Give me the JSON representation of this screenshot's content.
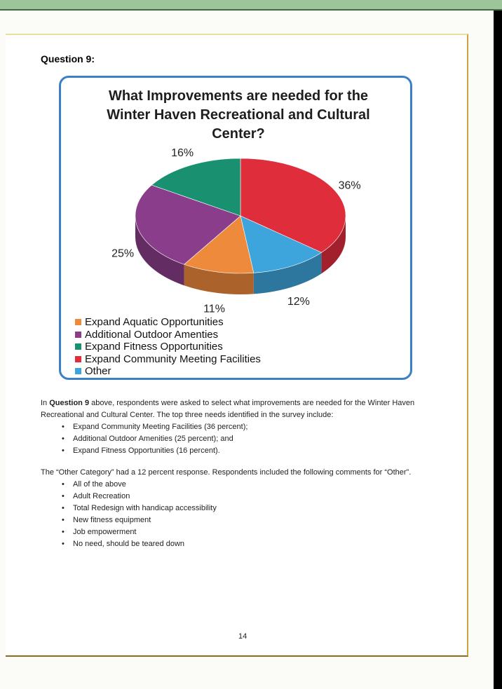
{
  "question_label": "Question 9:",
  "chart_data": {
    "type": "pie",
    "title": "What Improvements are needed for the Winter Haven Recreational and Cultural Center?",
    "categories": [
      "Expand Aquatic Opportunities",
      "Additional Outdoor Amenties",
      "Expand Fitness Opportunities",
      "Expand Community Meeting Facilities",
      "Other"
    ],
    "values": [
      11,
      25,
      16,
      36,
      12
    ],
    "value_labels": [
      "11%",
      "25%",
      "16%",
      "36%",
      "12%"
    ],
    "colors": [
      "#ee8a3c",
      "#8a3d8a",
      "#199170",
      "#e02d3c",
      "#3ea5dc"
    ],
    "style": "3d",
    "legend_position": "bottom-left"
  },
  "intro": {
    "before": "In ",
    "bold": "Question 9",
    "after": " above, respondents were asked to select what improvements are needed for the Winter Haven Recreational and Cultural Center. The top three needs identified in the survey include:"
  },
  "top_needs": [
    "Expand Community Meeting Facilities (36 percent);",
    "Additional Outdoor Amenities (25 percent); and",
    "Expand Fitness Opportunities (16 percent)."
  ],
  "other_paragraph": "The “Other Category” had a 12 percent response. Respondents included the following comments for “Other”.",
  "other_comments": [
    "All of the above",
    "Adult Recreation",
    "Total Redesign with handicap accessibility",
    "New fitness equipment",
    "Job empowerment",
    "No need, should be teared down"
  ],
  "page_number": "14"
}
